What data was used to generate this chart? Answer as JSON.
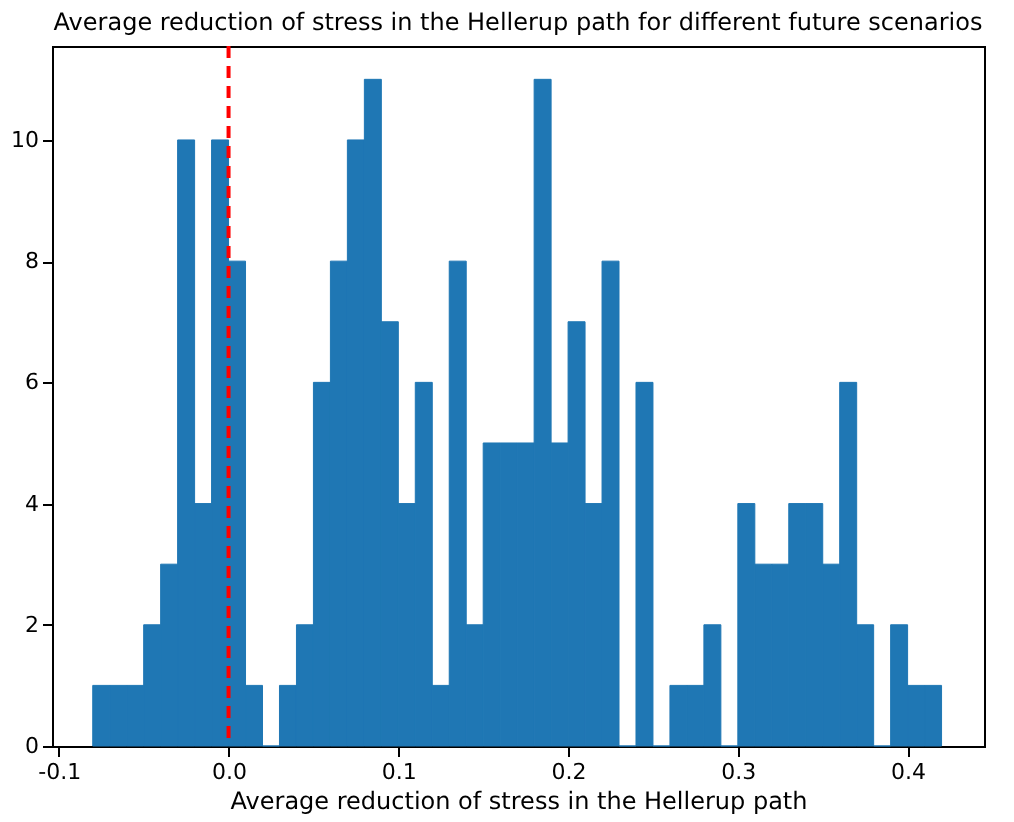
{
  "chart_data": {
    "type": "histogram",
    "title": "Average reduction of stress in the Hellerup path for different future scenarios",
    "xlabel": "Average reduction of stress in the Hellerup path",
    "bins": [
      -0.08,
      -0.07,
      -0.06,
      -0.05,
      -0.04,
      -0.03,
      -0.02,
      -0.01,
      0.0,
      0.01,
      0.02,
      0.03,
      0.04,
      0.05,
      0.06,
      0.07,
      0.08,
      0.09,
      0.1,
      0.11,
      0.12,
      0.13,
      0.14,
      0.15,
      0.16,
      0.17,
      0.18,
      0.19,
      0.2,
      0.21,
      0.22,
      0.23,
      0.24,
      0.25,
      0.26,
      0.27,
      0.28,
      0.29,
      0.3,
      0.31,
      0.32,
      0.33,
      0.34,
      0.35,
      0.36,
      0.37,
      0.38,
      0.39,
      0.4,
      0.41,
      0.42
    ],
    "values": [
      1,
      1,
      1,
      2,
      3,
      10,
      4,
      10,
      8,
      1,
      0,
      1,
      2,
      6,
      8,
      10,
      11,
      7,
      4,
      6,
      1,
      8,
      2,
      5,
      5,
      5,
      11,
      5,
      7,
      4,
      8,
      0,
      6,
      0,
      1,
      1,
      2,
      0,
      4,
      3,
      3,
      4,
      4,
      3,
      6,
      2,
      0,
      2,
      1,
      1
    ],
    "color": "#1f77b4",
    "xlim": [
      -0.104,
      0.445
    ],
    "xticks": [
      {
        "value": -0.1,
        "label": "-0.1"
      },
      {
        "value": 0.0,
        "label": "0.0"
      },
      {
        "value": 0.1,
        "label": "0.1"
      },
      {
        "value": 0.2,
        "label": "0.2"
      },
      {
        "value": 0.3,
        "label": "0.3"
      },
      {
        "value": 0.4,
        "label": "0.4"
      }
    ],
    "ylim": [
      0,
      11.55
    ],
    "yticks": [
      0,
      2,
      4,
      6,
      8,
      10
    ],
    "grid": false,
    "ref_lines": [
      {
        "axis": "x",
        "value": 0,
        "color": "#ff0000",
        "line_style": "dashed"
      }
    ]
  }
}
